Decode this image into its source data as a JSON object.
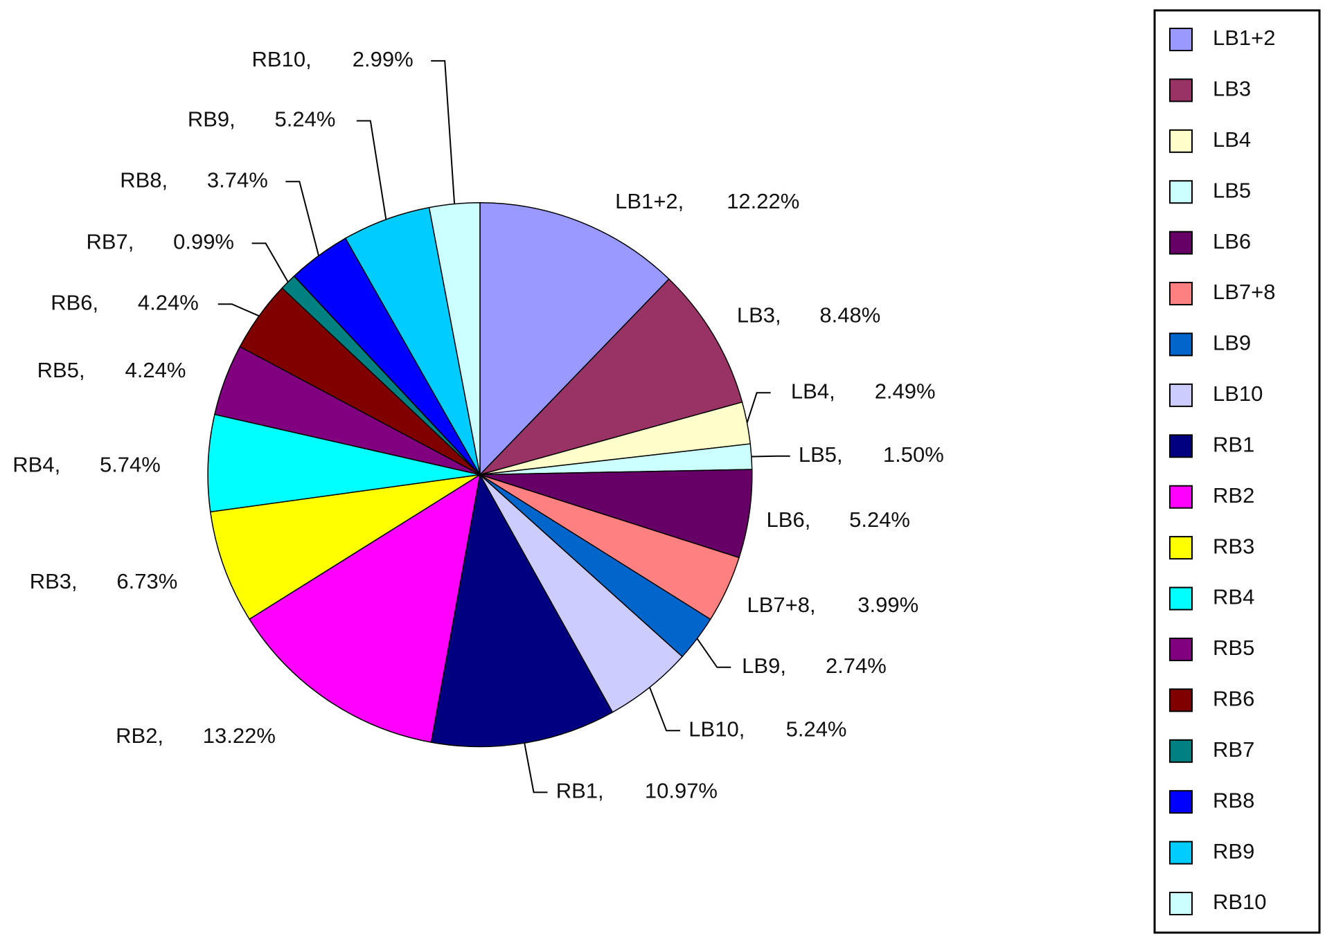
{
  "chart_data": {
    "type": "pie",
    "categories": [
      "LB1+2",
      "LB3",
      "LB4",
      "LB5",
      "LB6",
      "LB7+8",
      "LB9",
      "LB10",
      "RB1",
      "RB2",
      "RB3",
      "RB4",
      "RB5",
      "RB6",
      "RB7",
      "RB8",
      "RB9",
      "RB10"
    ],
    "slice_labels": [
      "LB1+2,",
      "LB3,",
      "LB4,",
      "LB5,",
      "LB6,",
      "LB7+8,",
      "LB9,",
      "LB10,",
      "RB1,",
      "RB2,",
      "RB3,",
      "RB4,",
      "RB5,",
      "RB6,",
      "RB7,",
      "RB8,",
      "RB9,",
      "RB10,"
    ],
    "values": [
      12.22,
      8.48,
      2.49,
      1.5,
      5.24,
      3.99,
      2.74,
      5.24,
      10.97,
      13.22,
      6.73,
      5.74,
      4.24,
      4.24,
      0.99,
      3.74,
      5.24,
      2.99
    ],
    "value_labels": [
      "12.22%",
      "8.48%",
      "2.49%",
      "1.50%",
      "5.24%",
      "3.99%",
      "2.74%",
      "5.24%",
      "10.97%",
      "13.22%",
      "6.73%",
      "5.74%",
      "4.24%",
      "4.24%",
      "0.99%",
      "3.74%",
      "5.24%",
      "2.99%"
    ],
    "colors": [
      "#9999ff",
      "#993366",
      "#ffffcc",
      "#ccffff",
      "#660066",
      "#ff8080",
      "#0066cc",
      "#ccccff",
      "#000080",
      "#ff00ff",
      "#ffff00",
      "#00ffff",
      "#800080",
      "#800000",
      "#008080",
      "#0000ff",
      "#00ccff",
      "#ccffff"
    ],
    "legend": "right"
  }
}
